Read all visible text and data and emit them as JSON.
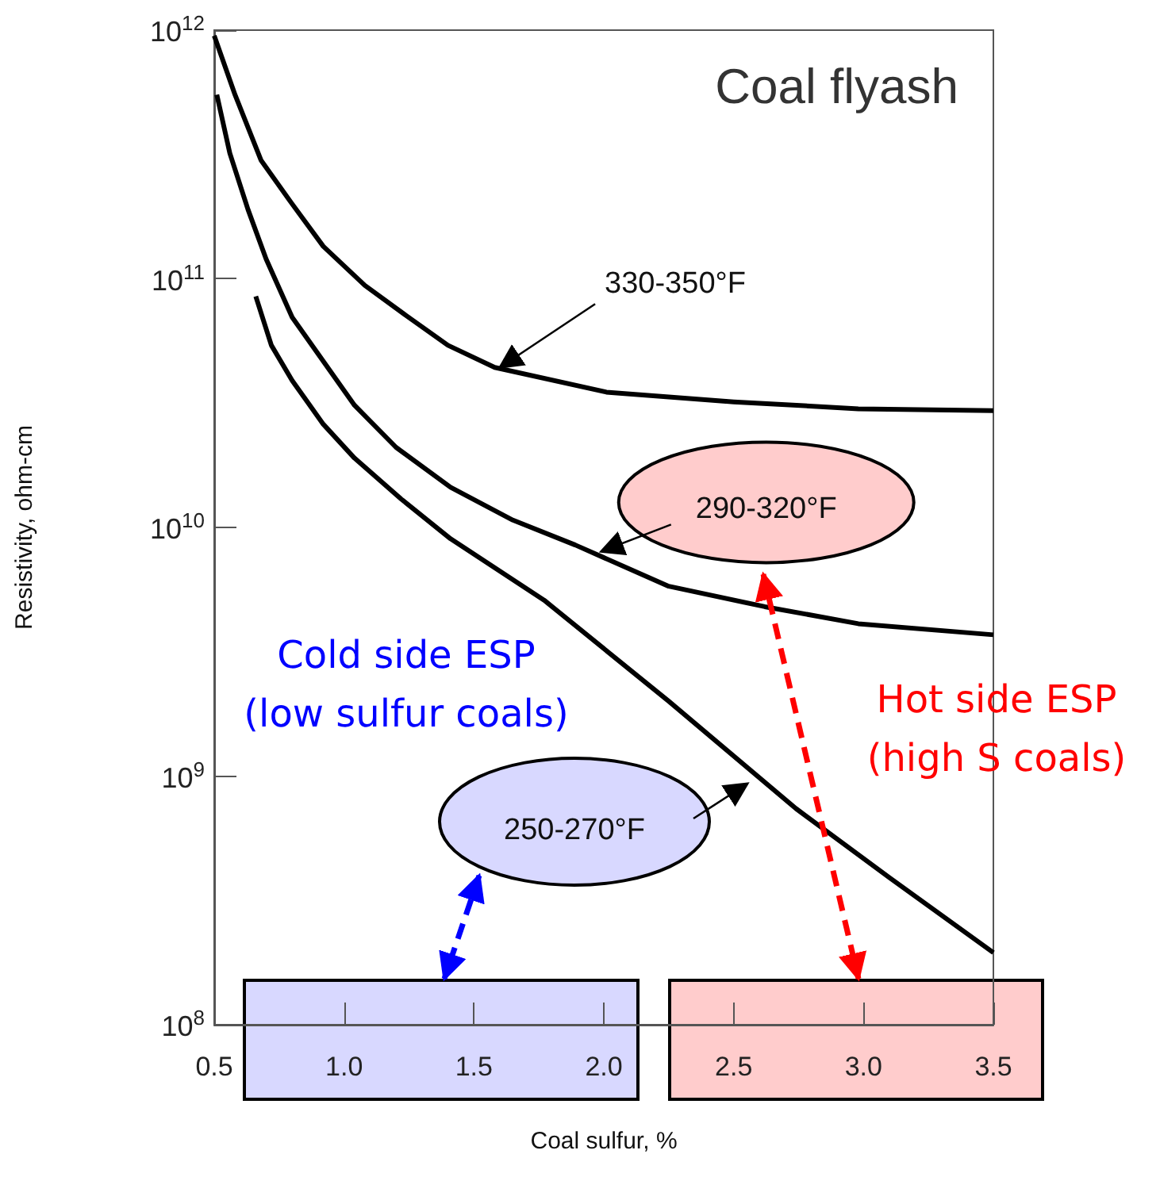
{
  "chart_data": {
    "type": "line",
    "title": "Coal flyash",
    "xlabel": "Coal sulfur, %",
    "ylabel": "Resistivity, ohm-cm",
    "xlim": [
      0.5,
      3.5
    ],
    "xticks": [
      0.5,
      {
        "value": 1,
        "label": "1.0"
      },
      1.5,
      {
        "value": 2,
        "label": "2.0"
      },
      2.5,
      {
        "value": 3,
        "label": "3.0"
      },
      3.5
    ],
    "ylim": [
      100000000,
      1000000000000
    ],
    "log": true,
    "grid": false,
    "legend": false,
    "marker": "none",
    "line_style": "solid",
    "yticks": [
      {
        "value": 100000000,
        "label": "10$^{8}$"
      },
      {
        "value": 1000000000,
        "label": "10$^{9}$"
      },
      {
        "value": 10000000000,
        "label": "10$^{10}$"
      },
      {
        "value": 100000000000,
        "label": "10$^{11}$"
      },
      {
        "value": 1000000000000,
        "label": "10$^{12}$"
      }
    ],
    "series": [
      {
        "color": "#000000",
        "x": [
          0.5,
          0.58,
          0.68,
          0.8,
          0.92,
          1.08,
          1.24,
          1.4,
          1.58,
          2.01,
          2.5,
          2.98,
          3.5
        ],
        "values": [
          950000000000,
          550000000000,
          300000000000,
          200000000000,
          135000000000,
          94000000000,
          71000000000,
          54000000000,
          44000000000,
          35000000000,
          32000000000,
          30000000000,
          29500000000
        ]
      },
      {
        "color": "#000000",
        "x": [
          0.51,
          0.56,
          0.63,
          0.7,
          0.8,
          1.04,
          1.2,
          1.41,
          1.65,
          1.89,
          2.25,
          2.62,
          2.98,
          3.5
        ],
        "values": [
          550000000000,
          320000000000,
          190000000000,
          120000000000,
          70000000000,
          31000000000,
          21000000000,
          14500000000,
          10700000000,
          8500000000,
          5800000000,
          4800000000,
          4100000000,
          3700000000
        ]
      },
      {
        "color": "#000000",
        "x": [
          0.66,
          0.72,
          0.8,
          0.92,
          1.04,
          1.22,
          1.41,
          1.77,
          2.25,
          2.74,
          3.1,
          3.5
        ],
        "values": [
          85000000000,
          54000000000,
          39000000000,
          26000000000,
          19000000000,
          13000000000,
          9000000000,
          5100000000,
          2000000000,
          740000000,
          390000000,
          195000000
        ]
      }
    ],
    "annotations": [
      {
        "text": "330-350°F",
        "x": 1.6,
        "y": 44000000000
      },
      {
        "text": "290-320°F",
        "x": 1.99,
        "y": 8000000000
      },
      "250-270°F",
      "Cold side ESP\n(low sulfur coals)",
      "Hot side ESP\n(high S coals)"
    ]
  }
}
